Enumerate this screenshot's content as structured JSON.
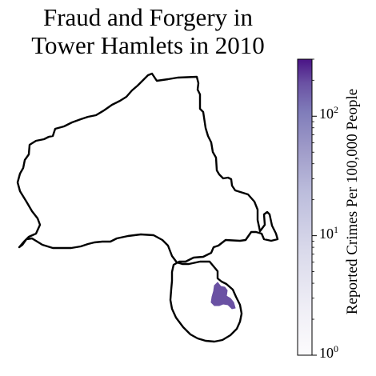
{
  "map": {
    "title_line1": "Fraud and Forgery in",
    "title_line2": "Tower Hamlets in 2010",
    "highlighted_area_color": "#6a51a3",
    "outline_color": "#000000"
  },
  "colorbar": {
    "label": "Reported Crimes Per 100,000 People",
    "scale": "log",
    "range": [
      1,
      300
    ],
    "colormap": "Purples",
    "ticks": [
      {
        "base": "10",
        "exp": "0",
        "value": 1
      },
      {
        "base": "10",
        "exp": "1",
        "value": 10
      },
      {
        "base": "10",
        "exp": "2",
        "value": 100
      }
    ]
  }
}
